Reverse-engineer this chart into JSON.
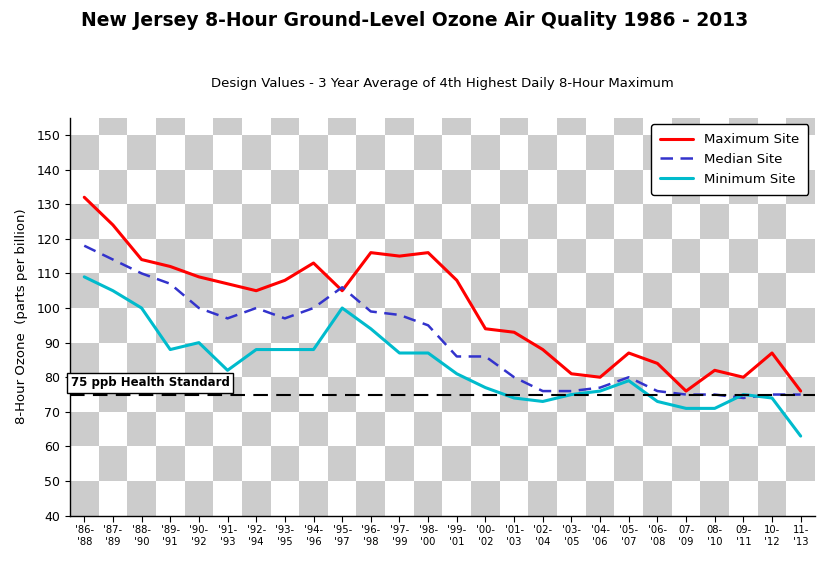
{
  "title": "New Jersey 8-Hour Ground-Level Ozone Air Quality 1986 - 2013",
  "subtitle": "Design Values - 3 Year Average of 4th Highest Daily 8-Hour Maximum",
  "ylabel": "8-Hour Ozone  (parts per billion)",
  "health_standard": 75,
  "health_label": "75 ppb Health Standard",
  "ylim": [
    40,
    155
  ],
  "yticks": [
    40,
    50,
    60,
    70,
    80,
    90,
    100,
    110,
    120,
    130,
    140,
    150
  ],
  "x_labels_top": [
    "'86-",
    "'87-",
    "'88-",
    "'89-",
    "'90-",
    "'91-",
    "'92-",
    "'93-",
    "'94-",
    "'95-",
    "'96-",
    "'97-",
    "'98-",
    "'99-",
    "'00-",
    "'01-",
    "'02-",
    "'03-",
    "'04-",
    "'05-",
    "'06-",
    "07-",
    "08-",
    "09-",
    "10-",
    "11-"
  ],
  "x_labels_bot": [
    "'88",
    "'89",
    "'90",
    "'91",
    "'92",
    "'93",
    "'94",
    "'95",
    "'96",
    "'97",
    "'98",
    "'99",
    "'00",
    "'01",
    "'02",
    "'03",
    "'04",
    "'05",
    "'06",
    "'07",
    "'08",
    "'09",
    "'10",
    "'11",
    "'12",
    "'13"
  ],
  "maximum": [
    132,
    124,
    114,
    112,
    109,
    107,
    105,
    108,
    113,
    105,
    116,
    115,
    116,
    108,
    94,
    93,
    88,
    81,
    80,
    87,
    84,
    76,
    82,
    80,
    87,
    76
  ],
  "median": [
    118,
    114,
    110,
    107,
    100,
    97,
    100,
    97,
    100,
    106,
    99,
    98,
    95,
    86,
    86,
    80,
    76,
    76,
    77,
    80,
    76,
    75,
    75,
    74,
    75,
    75
  ],
  "minimum": [
    109,
    105,
    100,
    88,
    90,
    82,
    88,
    88,
    88,
    100,
    94,
    87,
    87,
    81,
    77,
    74,
    73,
    75,
    76,
    79,
    73,
    71,
    71,
    75,
    74,
    63
  ],
  "max_color": "#ff0000",
  "median_color": "#3333cc",
  "min_color": "#00bbcc",
  "checker_color1": "#cccccc",
  "checker_color2": "#ffffff"
}
